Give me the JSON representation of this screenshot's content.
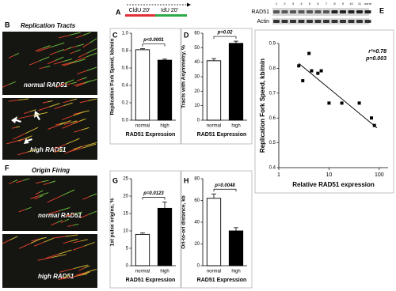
{
  "figure": {
    "panel_b": {
      "letter": "B",
      "title": "Replication Tracts",
      "image_labels": [
        "normal RAD51",
        "high RAD51"
      ]
    },
    "panel_f": {
      "letter": "F",
      "title": "Origin Firing",
      "image_labels": [
        "normal RAD51",
        "high RAD51"
      ]
    },
    "panel_a": {
      "letter": "A",
      "labels": [
        "CldU 20'",
        "IdU 20'"
      ]
    },
    "panel_e_blot": {
      "letter": "E",
      "rows": [
        "RAD51",
        "Actin"
      ],
      "lanes": [
        "1",
        "2",
        "3",
        "4",
        "5",
        "6",
        "7",
        "8",
        "9",
        "10",
        "11",
        "norm"
      ]
    }
  },
  "chart_data": [
    {
      "type": "bar",
      "panel": "C",
      "ylabel": "Replication Fork Speed, kb/min",
      "xlabel": "RAD51 Expression",
      "categories": [
        "normal",
        "high"
      ],
      "values": [
        0.81,
        0.69
      ],
      "errors": [
        0.012,
        0.012
      ],
      "colors": [
        "#ffffff",
        "#000000"
      ],
      "ylim": [
        0,
        1
      ],
      "yticks": [
        {
          "value": 0,
          "label": "0.0"
        },
        0.2,
        0.4,
        0.6,
        0.8,
        {
          "value": 1,
          "label": "1.0"
        }
      ],
      "annotation": "p<0.0001"
    },
    {
      "type": "bar",
      "panel": "D",
      "ylabel": "Tracts with Asymmetry, %",
      "xlabel": "RAD51 Expression",
      "categories": [
        "normal",
        "high"
      ],
      "values": [
        41,
        53
      ],
      "errors": [
        1.5,
        1.5
      ],
      "colors": [
        "#ffffff",
        "#000000"
      ],
      "ylim": [
        0,
        60
      ],
      "yticks": [
        0,
        10,
        20,
        30,
        40,
        50,
        60
      ],
      "annotation": "p=0.02"
    },
    {
      "type": "bar",
      "panel": "G",
      "ylabel": "1st pulse origins, %",
      "xlabel": "RAD51 Expression",
      "categories": [
        "normal",
        "high"
      ],
      "values": [
        9,
        16.5
      ],
      "errors": [
        0.4,
        1.8
      ],
      "colors": [
        "#ffffff",
        "#000000"
      ],
      "ylim": [
        0,
        25
      ],
      "yticks": [
        0,
        5,
        10,
        15,
        20,
        25
      ],
      "annotation": "p=0.0123"
    },
    {
      "type": "bar",
      "panel": "H",
      "ylabel": "Ori-to-ori distance, kb",
      "xlabel": "RAD51 Expression",
      "categories": [
        "normal",
        "high"
      ],
      "values": [
        62,
        32
      ],
      "errors": [
        4,
        3
      ],
      "colors": [
        "#ffffff",
        "#000000"
      ],
      "ylim": [
        0,
        80
      ],
      "yticks": [
        0,
        20,
        40,
        60,
        80
      ],
      "annotation": "p=0.0048"
    },
    {
      "type": "scatter",
      "panel": "E",
      "ylabel": "Replication Fork Speed, kb/min",
      "xlabel": "Relative RAD51 expression",
      "x": [
        2.5,
        3,
        4,
        4.5,
        6,
        7,
        10,
        18,
        40,
        70,
        80
      ],
      "y": [
        0.81,
        0.75,
        0.86,
        0.79,
        0.78,
        0.79,
        0.66,
        0.66,
        0.66,
        0.6,
        0.57
      ],
      "color": "#000000",
      "xlim": [
        1,
        150
      ],
      "xticks": [
        1,
        10,
        100
      ],
      "xscale": "log",
      "ylim": [
        0.4,
        0.9
      ],
      "yticks": [
        0.4,
        0.5,
        0.6,
        0.7,
        0.8,
        0.9
      ],
      "fit_x": [
        2.5,
        90
      ],
      "fit_y": [
        0.82,
        0.56
      ],
      "annotations": [
        "r²=0.78",
        "p=0.003"
      ]
    }
  ]
}
